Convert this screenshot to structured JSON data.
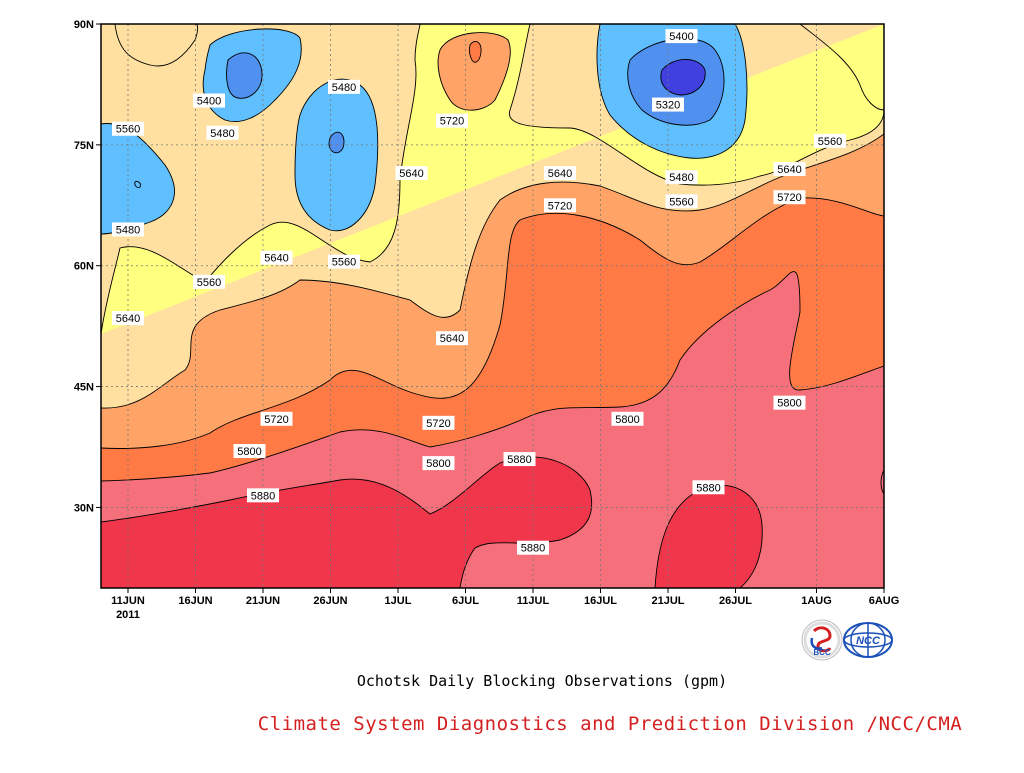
{
  "chart_data": {
    "type": "heatmap",
    "title": "Ochotsk Daily Blocking Observations (gpm)",
    "source": "Climate System Diagnostics and Prediction Division /NCC/CMA",
    "x_ticks": [
      "11JUN",
      "16JUN",
      "21JUN",
      "26JUN",
      "1JUL",
      "6JUL",
      "11JUL",
      "16JUL",
      "21JUL",
      "26JUL",
      "1AUG",
      "6AUG"
    ],
    "x_year": "2011",
    "y_ticks": [
      "30N",
      "45N",
      "60N",
      "75N",
      "90N"
    ],
    "y_range": [
      20,
      90
    ],
    "x_range": [
      "2011-06-09",
      "2011-08-06"
    ],
    "contour_levels": [
      5320,
      5400,
      5480,
      5560,
      5640,
      5720,
      5800,
      5880
    ],
    "band_colors": {
      "5880+": "#f0364a",
      "5800-5880": "#f5707a",
      "5720-5800": "#ff7a45",
      "5640-5720": "#ffa466",
      "5560-5640": "#ffe0a0",
      "5480-5560": "#ffff80",
      "5400-5480": "#60c0ff",
      "5320-5400": "#5090ef",
      "<5320": "#4040e0"
    },
    "contour_labels": [
      {
        "date": "2011-07-22",
        "lat": 88.5,
        "value": "5400"
      },
      {
        "date": "2011-06-27",
        "lat": 82.2,
        "value": "5480"
      },
      {
        "date": "2011-06-17",
        "lat": 80.5,
        "value": "5400"
      },
      {
        "date": "2011-07-21",
        "lat": 80.0,
        "value": "5320"
      },
      {
        "date": "2011-06-11",
        "lat": 77.0,
        "value": "5560"
      },
      {
        "date": "2011-06-18",
        "lat": 76.5,
        "value": "5480"
      },
      {
        "date": "2011-07-05",
        "lat": 78.0,
        "value": "5720"
      },
      {
        "date": "2011-08-02",
        "lat": 75.5,
        "value": "5560"
      },
      {
        "date": "2011-07-02",
        "lat": 71.5,
        "value": "5640"
      },
      {
        "date": "2011-07-13",
        "lat": 71.5,
        "value": "5640"
      },
      {
        "date": "2011-07-22",
        "lat": 71.0,
        "value": "5480"
      },
      {
        "date": "2011-07-30",
        "lat": 72.0,
        "value": "5640"
      },
      {
        "date": "2011-07-22",
        "lat": 68.0,
        "value": "5560"
      },
      {
        "date": "2011-07-13",
        "lat": 67.5,
        "value": "5720"
      },
      {
        "date": "2011-07-30",
        "lat": 68.5,
        "value": "5720"
      },
      {
        "date": "2011-06-11",
        "lat": 64.5,
        "value": "5480"
      },
      {
        "date": "2011-06-22",
        "lat": 61.0,
        "value": "5640"
      },
      {
        "date": "2011-06-27",
        "lat": 60.5,
        "value": "5560"
      },
      {
        "date": "2011-06-17",
        "lat": 58.0,
        "value": "5560"
      },
      {
        "date": "2011-06-11",
        "lat": 53.5,
        "value": "5640"
      },
      {
        "date": "2011-07-05",
        "lat": 51.0,
        "value": "5640"
      },
      {
        "date": "2011-06-22",
        "lat": 41.0,
        "value": "5720"
      },
      {
        "date": "2011-07-04",
        "lat": 40.5,
        "value": "5720"
      },
      {
        "date": "2011-07-18",
        "lat": 41.0,
        "value": "5800"
      },
      {
        "date": "2011-07-30",
        "lat": 43.0,
        "value": "5800"
      },
      {
        "date": "2011-06-20",
        "lat": 37.0,
        "value": "5800"
      },
      {
        "date": "2011-07-04",
        "lat": 35.5,
        "value": "5800"
      },
      {
        "date": "2011-07-10",
        "lat": 36.0,
        "value": "5880"
      },
      {
        "date": "2011-07-24",
        "lat": 32.5,
        "value": "5880"
      },
      {
        "date": "2011-06-21",
        "lat": 31.5,
        "value": "5880"
      },
      {
        "date": "2011-07-11",
        "lat": 25.0,
        "value": "5880"
      }
    ],
    "grid": true,
    "logos": [
      "BCC",
      "NCC"
    ]
  }
}
